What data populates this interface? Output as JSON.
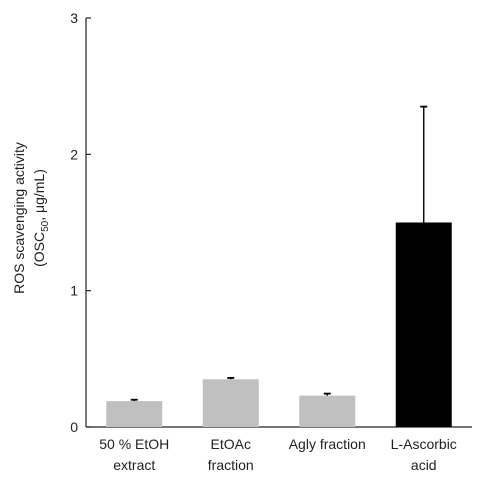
{
  "chart_data": {
    "type": "bar",
    "categories": [
      [
        "50 % EtOH",
        "extract"
      ],
      [
        "EtOAc",
        "fraction"
      ],
      [
        "Agly fraction"
      ],
      [
        "L-Ascorbic",
        "acid"
      ]
    ],
    "values": [
      0.19,
      0.35,
      0.23,
      1.5
    ],
    "errors": [
      0.01,
      0.01,
      0.015,
      0.85
    ],
    "bar_colors": [
      "#c0c0c0",
      "#c0c0c0",
      "#c0c0c0",
      "#000000"
    ],
    "title": "",
    "xlabel": "",
    "ylabel": {
      "line1": "ROS scavenging activity",
      "line2_prefix": "(OSC",
      "line2_sub": "50",
      "line2_suffix": ", μg/mL)"
    },
    "ylim": [
      0,
      3
    ],
    "yticks": [
      0,
      1,
      2,
      3
    ],
    "grid": false,
    "legend": "none"
  }
}
